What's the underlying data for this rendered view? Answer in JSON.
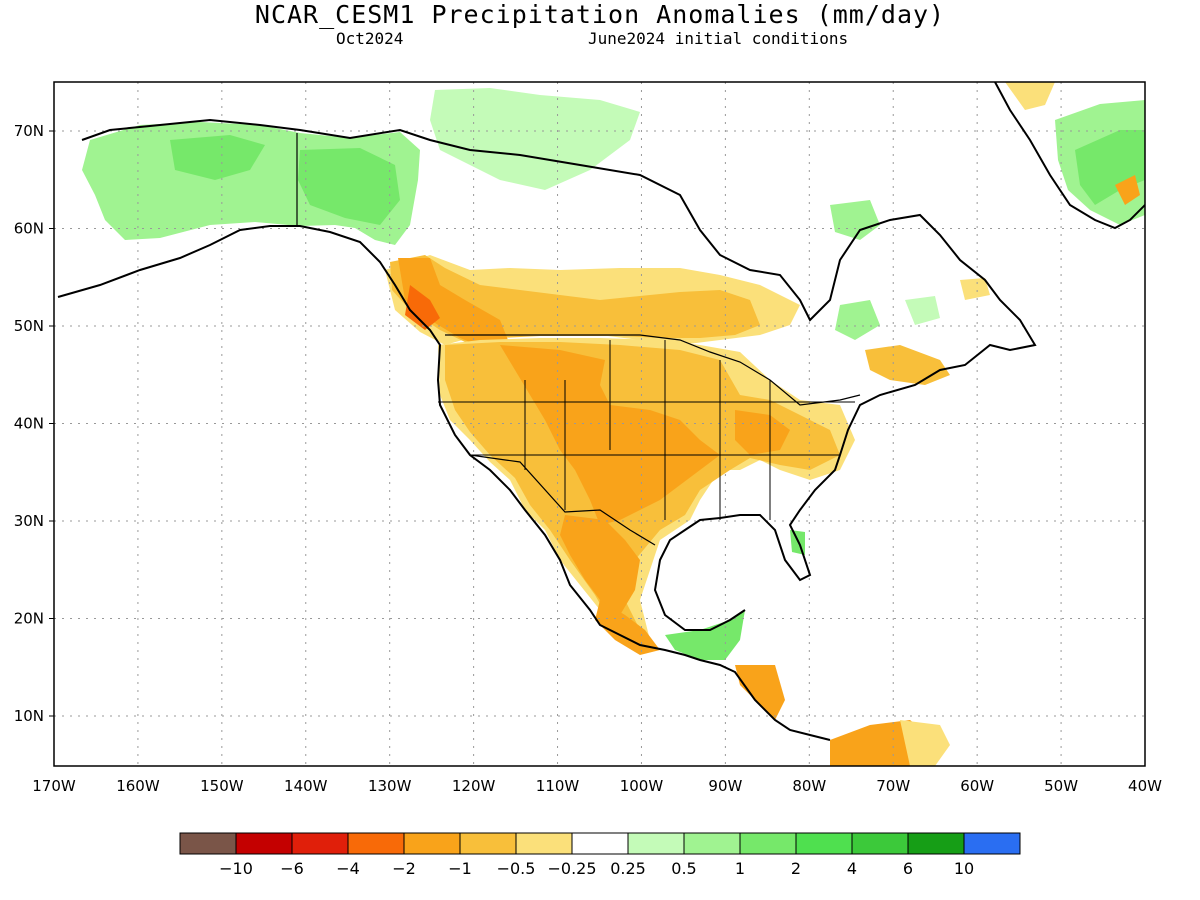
{
  "title": "NCAR_CESM1 Precipitation Anomalies (mm/day)",
  "valid_month": "Oct2024",
  "initial_conditions": "June2024 initial conditions",
  "axes": {
    "lon_labels": [
      "170W",
      "160W",
      "150W",
      "140W",
      "130W",
      "120W",
      "110W",
      "100W",
      "90W",
      "80W",
      "70W",
      "60W",
      "50W",
      "40W"
    ],
    "lat_labels": [
      "10N",
      "20N",
      "30N",
      "40N",
      "50N",
      "60N",
      "70N"
    ]
  },
  "colorbar": {
    "labels": [
      "−10",
      "−6",
      "−4",
      "−2",
      "−1",
      "−0.5",
      "−0.25",
      "0.25",
      "0.5",
      "1",
      "2",
      "4",
      "6",
      "10"
    ],
    "colors": [
      "#7a5548",
      "#c40000",
      "#e01f0a",
      "#f86a08",
      "#f9a31a",
      "#f8bf3a",
      "#fbe07a",
      "#ffffff",
      "#c4fbb8",
      "#a0f391",
      "#76e86a",
      "#4fe04f",
      "#3cc93a",
      "#169e16",
      "#2a6ef2"
    ]
  },
  "colors": {
    "dry_weak": "#fbe07a",
    "dry_moderate": "#f8bf3a",
    "dry_strong": "#f9a31a",
    "dry_very_strong": "#f86a08",
    "wet_weak": "#c4fbb8",
    "wet_moderate": "#a0f391",
    "wet_strong": "#76e86a",
    "wet_very_strong": "#4fe04f",
    "gridline": "#999999",
    "coastline": "#000000"
  }
}
